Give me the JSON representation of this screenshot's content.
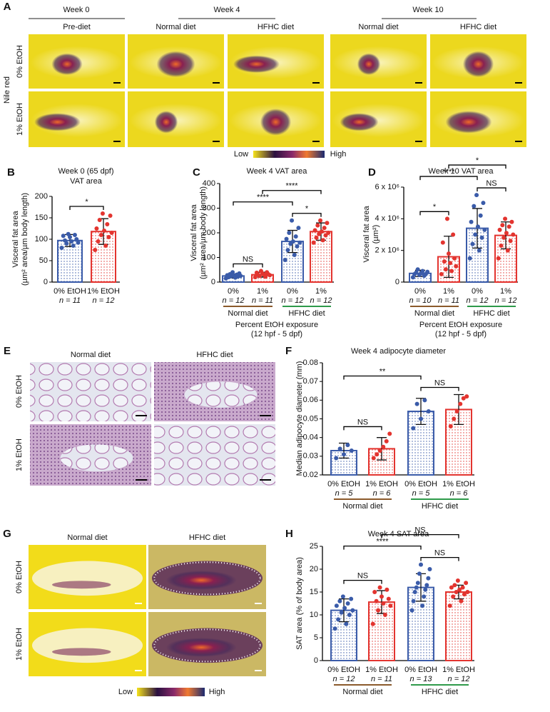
{
  "panel_a": {
    "label": "A",
    "weeks": [
      "Week 0",
      "Week 4",
      "Week 10"
    ],
    "diets": [
      "Pre-diet",
      "Normal diet",
      "HFHC diet",
      "Normal diet",
      "HFHC diet"
    ],
    "rows": [
      "0% EtOH",
      "1% EtOH"
    ],
    "stain": "Nile red",
    "scale": [
      "Low",
      "High"
    ]
  },
  "panel_e": {
    "label": "E",
    "diets": [
      "Normal diet",
      "HFHC diet"
    ],
    "rows": [
      "0% EtOH",
      "1% EtOH"
    ]
  },
  "panel_g": {
    "label": "G",
    "diets": [
      "Normal diet",
      "HFHC diet"
    ],
    "rows": [
      "0% EtOH",
      "1% EtOH"
    ],
    "scale": [
      "Low",
      "High"
    ]
  },
  "chart_data": [
    {
      "type": "bar",
      "panel": "B",
      "title": [
        "Week 0 (65 dpf)",
        "VAT area"
      ],
      "ylabel": [
        "Visceral fat area",
        "(µm² area/µm body length)"
      ],
      "categories": [
        "0% EtOH",
        "1% EtOH"
      ],
      "n_labels": [
        "n = 11",
        "n = 12"
      ],
      "colors": [
        "#3a5ba9",
        "#e3342f"
      ],
      "values": [
        97,
        118
      ],
      "errors": [
        14,
        30
      ],
      "points": [
        [
          80,
          85,
          90,
          92,
          95,
          97,
          100,
          105,
          108,
          110,
          112
        ],
        [
          75,
          85,
          95,
          105,
          110,
          115,
          120,
          125,
          135,
          145,
          155,
          160
        ]
      ],
      "ylim": [
        0,
        200
      ],
      "yticks": [
        0,
        50,
        100,
        150,
        200
      ],
      "significance": [
        {
          "bars": [
            0,
            1
          ],
          "label": "*"
        }
      ]
    },
    {
      "type": "bar",
      "panel": "C",
      "title": [
        "Week 4 VAT area"
      ],
      "ylabel": [
        "Visceral fat area",
        "(µm² area/µm body length)"
      ],
      "categories": [
        "0%",
        "1%",
        "0%",
        "1%"
      ],
      "n_labels": [
        "n = 12",
        "n = 11",
        "n = 12",
        "n = 12"
      ],
      "groups": [
        {
          "name": "Normal diet",
          "color": "#8b5a2b"
        },
        {
          "name": "HFHC diet",
          "color": "#2e9a4a"
        }
      ],
      "xlabel": [
        "Percent EtOH exposure",
        "(12 hpf - 5 dpf)"
      ],
      "colors": [
        "#3a5ba9",
        "#e3342f",
        "#3a5ba9",
        "#e3342f"
      ],
      "values": [
        25,
        30,
        165,
        205
      ],
      "errors": [
        8,
        10,
        45,
        35
      ],
      "points": [
        [
          15,
          18,
          20,
          22,
          24,
          25,
          26,
          28,
          30,
          32,
          35,
          40
        ],
        [
          20,
          22,
          25,
          28,
          30,
          30,
          32,
          35,
          38,
          40,
          45
        ],
        [
          90,
          110,
          130,
          145,
          155,
          160,
          165,
          175,
          185,
          200,
          220,
          250
        ],
        [
          160,
          170,
          180,
          190,
          195,
          200,
          205,
          210,
          220,
          230,
          240,
          250
        ]
      ],
      "ylim": [
        0,
        400
      ],
      "yticks": [
        0,
        100,
        200,
        300,
        400
      ],
      "significance": [
        {
          "bars": [
            0,
            1
          ],
          "label": "NS"
        },
        {
          "bars": [
            2,
            3
          ],
          "label": "*"
        },
        {
          "bars": [
            0,
            2
          ],
          "label": "****"
        },
        {
          "bars": [
            1,
            3
          ],
          "label": "****"
        }
      ]
    },
    {
      "type": "bar",
      "panel": "D",
      "title": [
        "Week 10 VAT area"
      ],
      "ylabel": [
        "Visceral fat area",
        "(µm²)"
      ],
      "categories": [
        "0%",
        "1%",
        "0%",
        "1%"
      ],
      "n_labels": [
        "n = 10",
        "n = 11",
        "n = 12",
        "n = 12"
      ],
      "groups": [
        {
          "name": "Normal diet",
          "color": "#8b5a2b"
        },
        {
          "name": "HFHC diet",
          "color": "#2e9a4a"
        }
      ],
      "xlabel": [
        "Percent EtOH exposure",
        "(12 hpf - 5 dpf)"
      ],
      "colors": [
        "#3a5ba9",
        "#e3342f",
        "#3a5ba9",
        "#e3342f"
      ],
      "values": [
        550000,
        1600000,
        3400000,
        2950000
      ],
      "errors": [
        200000,
        1300000,
        1250000,
        850000
      ],
      "points": [
        [
          300000,
          400000,
          450000,
          500000,
          500000,
          550000,
          600000,
          650000,
          700000,
          800000
        ],
        [
          500000,
          700000,
          800000,
          1000000,
          1200000,
          1300000,
          1500000,
          1800000,
          2500000,
          3000000,
          4000000
        ],
        [
          1500000,
          2000000,
          2400000,
          2800000,
          3000000,
          3300000,
          3500000,
          3800000,
          4200000,
          4800000,
          5000000,
          5500000
        ],
        [
          1500000,
          2000000,
          2300000,
          2600000,
          2800000,
          3000000,
          3100000,
          3300000,
          3500000,
          3600000,
          3800000,
          4000000
        ]
      ],
      "ylim": [
        0,
        6000000
      ],
      "yticks": [
        0,
        {
          "value": 2000000,
          "label": "2 x 10⁶"
        },
        {
          "value": 4000000,
          "label": "4 x 10⁶"
        },
        {
          "value": 6000000,
          "label": "6 x 10⁶"
        }
      ],
      "significance": [
        {
          "bars": [
            0,
            1
          ],
          "label": "*"
        },
        {
          "bars": [
            2,
            3
          ],
          "label": "NS"
        },
        {
          "bars": [
            0,
            2
          ],
          "label": "****"
        },
        {
          "bars": [
            1,
            3
          ],
          "label": "*"
        }
      ]
    },
    {
      "type": "bar",
      "panel": "F",
      "title": [
        "Week 4 adipocyte diameter"
      ],
      "ylabel": [
        "Median adipocyte diameter (mm)"
      ],
      "categories": [
        "0% EtOH",
        "1% EtOH",
        "0% EtOH",
        "1% EtOH"
      ],
      "n_labels": [
        "n = 5",
        "n = 6",
        "n = 5",
        "n = 6"
      ],
      "groups": [
        {
          "name": "Normal diet",
          "color": "#8b5a2b"
        },
        {
          "name": "HFHC diet",
          "color": "#2e9a4a"
        }
      ],
      "colors": [
        "#3a5ba9",
        "#e3342f",
        "#3a5ba9",
        "#e3342f"
      ],
      "values": [
        0.033,
        0.034,
        0.054,
        0.055
      ],
      "errors": [
        0.004,
        0.006,
        0.007,
        0.008
      ],
      "points": [
        [
          0.029,
          0.031,
          0.033,
          0.034,
          0.036
        ],
        [
          0.029,
          0.031,
          0.033,
          0.035,
          0.038,
          0.042
        ],
        [
          0.045,
          0.05,
          0.054,
          0.058,
          0.06
        ],
        [
          0.046,
          0.05,
          0.054,
          0.058,
          0.061,
          0.062
        ]
      ],
      "ylim": [
        0.02,
        0.08
      ],
      "yticks": [
        0.02,
        0.03,
        0.04,
        0.05,
        0.06,
        0.07,
        0.08
      ],
      "significance": [
        {
          "bars": [
            0,
            1
          ],
          "label": "NS"
        },
        {
          "bars": [
            2,
            3
          ],
          "label": "NS"
        },
        {
          "bars": [
            0,
            2
          ],
          "label": "**"
        }
      ]
    },
    {
      "type": "bar",
      "panel": "H",
      "title": [
        "Week 4 SAT area"
      ],
      "ylabel": [
        "SAT area (% of body area)"
      ],
      "categories": [
        "0% EtOH",
        "1% EtOH",
        "0% EtOH",
        "1% EtOH"
      ],
      "n_labels": [
        "n = 12",
        "n = 11",
        "n = 13",
        "n = 12"
      ],
      "groups": [
        {
          "name": "Normal diet",
          "color": "#8b5a2b"
        },
        {
          "name": "HFHC diet",
          "color": "#2e9a4a"
        }
      ],
      "colors": [
        "#3a5ba9",
        "#e3342f",
        "#3a5ba9",
        "#e3342f"
      ],
      "values": [
        11,
        12.8,
        16,
        15
      ],
      "errors": [
        2.5,
        2.5,
        3,
        1.5
      ],
      "points": [
        [
          7,
          8,
          9,
          10,
          10.5,
          11,
          11.5,
          12,
          12.5,
          13,
          13.5,
          14
        ],
        [
          8,
          10,
          11,
          12,
          12.5,
          13,
          13.5,
          14,
          15,
          15.5,
          16
        ],
        [
          11,
          12,
          13,
          14,
          15,
          15.5,
          16,
          16.5,
          17,
          18,
          19,
          20,
          21
        ],
        [
          12,
          13,
          14,
          14.5,
          15,
          15,
          15.5,
          16,
          16,
          16.5,
          17,
          17.5
        ]
      ],
      "ylim": [
        0,
        25
      ],
      "yticks": [
        0,
        5,
        10,
        15,
        20,
        25
      ],
      "significance": [
        {
          "bars": [
            0,
            1
          ],
          "label": "NS"
        },
        {
          "bars": [
            2,
            3
          ],
          "label": "NS"
        },
        {
          "bars": [
            0,
            2
          ],
          "label": "****"
        },
        {
          "bars": [
            1,
            3
          ],
          "label": "NS"
        }
      ]
    }
  ]
}
